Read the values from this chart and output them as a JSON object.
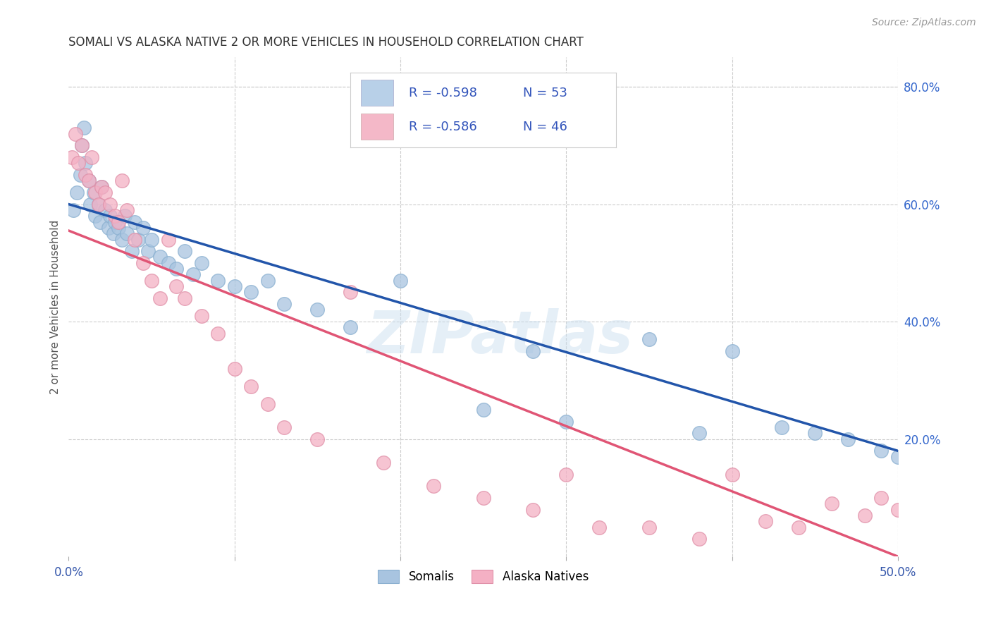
{
  "title": "SOMALI VS ALASKA NATIVE 2 OR MORE VEHICLES IN HOUSEHOLD CORRELATION CHART",
  "source": "Source: ZipAtlas.com",
  "ylabel": "2 or more Vehicles in Household",
  "xmin": 0.0,
  "xmax": 0.5,
  "ymin": 0.0,
  "ymax": 0.85,
  "x_ticks": [
    0.0,
    0.1,
    0.2,
    0.3,
    0.4,
    0.5
  ],
  "x_tick_labels": [
    "0.0%",
    "",
    "",
    "",
    "",
    "50.0%"
  ],
  "y_ticks_right": [
    0.2,
    0.4,
    0.6,
    0.8
  ],
  "y_tick_labels_right": [
    "20.0%",
    "40.0%",
    "60.0%",
    "80.0%"
  ],
  "somali_color": "#a8c4e0",
  "alaska_color": "#f4b0c4",
  "somali_line_color": "#2255aa",
  "alaska_line_color": "#e05575",
  "legend_box_somali": "#b8d0e8",
  "legend_box_alaska": "#f4b8c8",
  "R_somali": -0.598,
  "N_somali": 53,
  "R_alaska": -0.586,
  "N_alaska": 46,
  "somali_intercept": 0.6,
  "somali_slope": -0.84,
  "alaska_intercept": 0.555,
  "alaska_slope": -1.11,
  "somali_x": [
    0.003,
    0.005,
    0.007,
    0.008,
    0.009,
    0.01,
    0.012,
    0.013,
    0.015,
    0.016,
    0.018,
    0.019,
    0.02,
    0.022,
    0.024,
    0.025,
    0.027,
    0.028,
    0.03,
    0.032,
    0.034,
    0.035,
    0.038,
    0.04,
    0.042,
    0.045,
    0.048,
    0.05,
    0.055,
    0.06,
    0.065,
    0.07,
    0.075,
    0.08,
    0.09,
    0.1,
    0.11,
    0.12,
    0.13,
    0.15,
    0.17,
    0.2,
    0.25,
    0.28,
    0.3,
    0.35,
    0.38,
    0.4,
    0.43,
    0.45,
    0.47,
    0.49,
    0.5
  ],
  "somali_y": [
    0.59,
    0.62,
    0.65,
    0.7,
    0.73,
    0.67,
    0.64,
    0.6,
    0.62,
    0.58,
    0.6,
    0.57,
    0.63,
    0.59,
    0.56,
    0.58,
    0.55,
    0.57,
    0.56,
    0.54,
    0.58,
    0.55,
    0.52,
    0.57,
    0.54,
    0.56,
    0.52,
    0.54,
    0.51,
    0.5,
    0.49,
    0.52,
    0.48,
    0.5,
    0.47,
    0.46,
    0.45,
    0.47,
    0.43,
    0.42,
    0.39,
    0.47,
    0.25,
    0.35,
    0.23,
    0.37,
    0.21,
    0.35,
    0.22,
    0.21,
    0.2,
    0.18,
    0.17
  ],
  "alaska_x": [
    0.002,
    0.004,
    0.006,
    0.008,
    0.01,
    0.012,
    0.014,
    0.016,
    0.018,
    0.02,
    0.022,
    0.025,
    0.028,
    0.03,
    0.032,
    0.035,
    0.04,
    0.045,
    0.05,
    0.055,
    0.06,
    0.065,
    0.07,
    0.08,
    0.09,
    0.1,
    0.11,
    0.12,
    0.13,
    0.15,
    0.17,
    0.19,
    0.22,
    0.25,
    0.28,
    0.3,
    0.32,
    0.35,
    0.38,
    0.4,
    0.42,
    0.44,
    0.46,
    0.48,
    0.49,
    0.5
  ],
  "alaska_y": [
    0.68,
    0.72,
    0.67,
    0.7,
    0.65,
    0.64,
    0.68,
    0.62,
    0.6,
    0.63,
    0.62,
    0.6,
    0.58,
    0.57,
    0.64,
    0.59,
    0.54,
    0.5,
    0.47,
    0.44,
    0.54,
    0.46,
    0.44,
    0.41,
    0.38,
    0.32,
    0.29,
    0.26,
    0.22,
    0.2,
    0.45,
    0.16,
    0.12,
    0.1,
    0.08,
    0.14,
    0.05,
    0.05,
    0.03,
    0.14,
    0.06,
    0.05,
    0.09,
    0.07,
    0.1,
    0.08
  ],
  "watermark": "ZIPatlas",
  "background_color": "#ffffff",
  "grid_color": "#cccccc"
}
